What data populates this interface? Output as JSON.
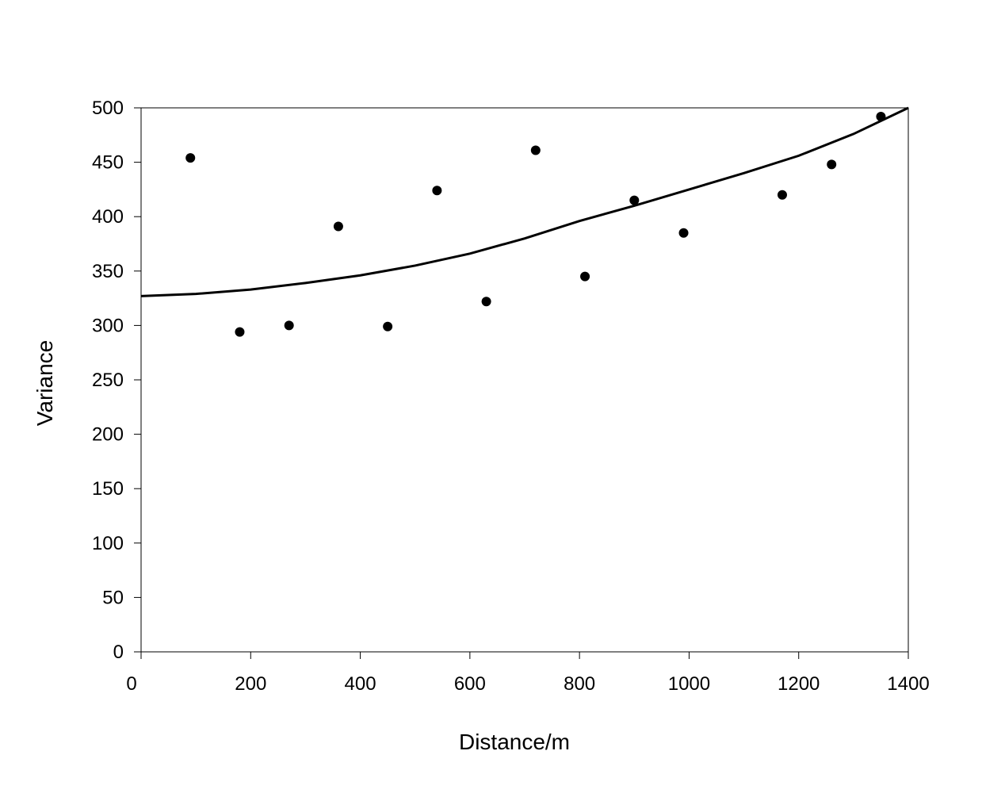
{
  "chart_data": {
    "type": "scatter",
    "title": "",
    "xlabel": "Distance/m",
    "ylabel": "Variance",
    "xlim": [
      0,
      1400
    ],
    "ylim": [
      0,
      500
    ],
    "xticks": [
      0,
      200,
      400,
      600,
      800,
      1000,
      1200,
      1400
    ],
    "yticks": [
      0,
      50,
      100,
      150,
      200,
      250,
      300,
      350,
      400,
      450,
      500
    ],
    "grid": false,
    "legend": "none",
    "series": [
      {
        "type": "scatter",
        "x": [
          90,
          180,
          270,
          360,
          450,
          540,
          630,
          720,
          810,
          900,
          990,
          1170,
          1260,
          1350
        ],
        "y": [
          454,
          294,
          300,
          391,
          299,
          424,
          322,
          461,
          345,
          415,
          385,
          420,
          448,
          492
        ],
        "color": "#000000"
      },
      {
        "type": "line",
        "x": [
          0,
          100,
          200,
          300,
          400,
          500,
          600,
          700,
          800,
          900,
          1000,
          1100,
          1200,
          1300,
          1400
        ],
        "y": [
          327,
          329,
          333,
          339,
          346,
          355,
          366,
          380,
          396,
          410,
          425,
          440,
          456,
          476,
          500
        ],
        "color": "#000000"
      }
    ]
  }
}
